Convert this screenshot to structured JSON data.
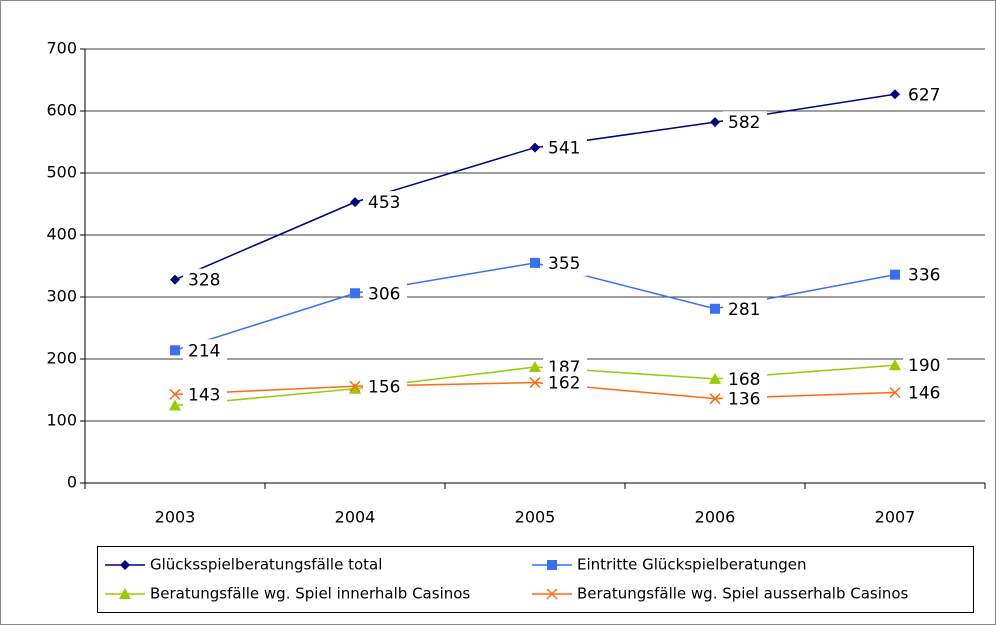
{
  "chart_data": {
    "type": "line",
    "categories": [
      "2003",
      "2004",
      "2005",
      "2006",
      "2007"
    ],
    "series": [
      {
        "name": "Glücksspielberatungsfälle total",
        "color": "#000080",
        "marker": "diamond",
        "values": [
          328,
          453,
          541,
          582,
          627
        ]
      },
      {
        "name": "Eintritte Glückspielberatungen",
        "color": "#3a6ff0",
        "marker": "square",
        "values": [
          214,
          306,
          355,
          281,
          336
        ]
      },
      {
        "name": "Beratungsfälle wg. Spiel innerhalb Casinos",
        "color": "#99cc00",
        "marker": "triangle",
        "values": [
          125,
          152,
          187,
          168,
          190
        ],
        "value_labels": [
          null,
          null,
          "187",
          "168",
          "190"
        ]
      },
      {
        "name": "Beratungsfälle wg. Spiel ausserhalb Casinos",
        "color": "#ff6a13",
        "marker": "x",
        "values": [
          143,
          156,
          162,
          136,
          146
        ]
      }
    ],
    "ylim": [
      0,
      700
    ],
    "yticks": [
      0,
      100,
      200,
      300,
      400,
      500,
      600,
      700
    ],
    "grid": true
  }
}
